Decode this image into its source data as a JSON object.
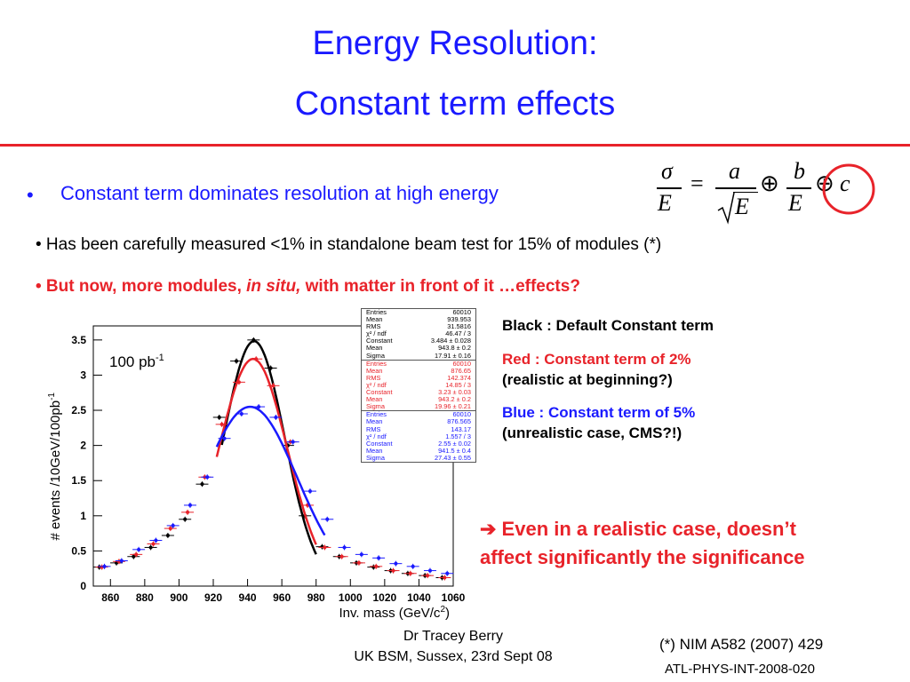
{
  "slide": {
    "title_line1": "Energy Resolution:",
    "title_line2": "Constant term effects",
    "bullet_main": "Constant term dominates resolution at high energy",
    "sub1": "• Has been carefully measured <1% in standalone beam test for 15% of modules (*)",
    "sub2_part1": "• But now, more modules, ",
    "sub2_italic": "in situ,",
    "sub2_part2": " with matter in front of it …effects?",
    "formula": {
      "lhs_num": "σ",
      "lhs_den": "E",
      "a": "a",
      "sqrtE": "E",
      "b": "b",
      "E": "E",
      "c": "c",
      "eq": "=",
      "oplus": "⊕"
    }
  },
  "legend": {
    "black": "Black : Default Constant term",
    "red1": "Red : Constant term of 2%",
    "red2": "(realistic at beginning?)",
    "blue1": "Blue : Constant term of 5%",
    "blue2": "(unrealistic case, CMS?!)"
  },
  "conclusion": {
    "line1": "➔ Even in a realistic case, doesn’t",
    "line2": "affect significantly the significance"
  },
  "footer": {
    "author": "Dr Tracey Berry",
    "event": "UK BSM, Sussex, 23rd Sept 08",
    "ref1": "(*) NIM A582 (2007) 429",
    "ref2": "ATL-PHYS-INT-2008-020"
  },
  "chart_data": {
    "type": "scatter",
    "annotation_lumi": "100 pb",
    "annotation_lumi_sup": "-1",
    "xlabel": "Inv. mass (GeV/c",
    "xlabel_sup": "2",
    "xlabel_end": ")",
    "ylabel": "# events /10GeV/100pb",
    "ylabel_sup": "-1",
    "xlim": [
      850,
      1060
    ],
    "ylim": [
      0,
      3.7
    ],
    "x_ticks": [
      "860",
      "880",
      "900",
      "920",
      "940",
      "960",
      "980",
      "1000",
      "1020",
      "1040",
      "1060"
    ],
    "y_ticks": [
      "0",
      "0.5",
      "1",
      "1.5",
      "2",
      "2.5",
      "3",
      "3.5"
    ],
    "y_tick_values": [
      0,
      0.5,
      1,
      1.5,
      2,
      2.5,
      3,
      3.5
    ],
    "x_tick_values": [
      860,
      880,
      900,
      920,
      940,
      960,
      980,
      1000,
      1020,
      1040,
      1060
    ],
    "series": [
      {
        "color": "#000000",
        "x": [
          855,
          865,
          875,
          885,
          895,
          905,
          915,
          925,
          935,
          945,
          955,
          965,
          975,
          985,
          995,
          1005,
          1015,
          1025,
          1035,
          1045,
          1055
        ],
        "y": [
          0.27,
          0.33,
          0.42,
          0.55,
          0.72,
          0.95,
          1.45,
          2.4,
          3.2,
          3.5,
          3.1,
          2.0,
          1.0,
          0.56,
          0.42,
          0.33,
          0.27,
          0.22,
          0.18,
          0.15,
          0.12
        ],
        "fit": {
          "amp": 3.484,
          "mean": 943.8,
          "sigma": 17.91,
          "range": [
            925,
            980
          ]
        }
      },
      {
        "color": "#e8232a",
        "x": [
          855,
          865,
          875,
          885,
          895,
          905,
          915,
          925,
          935,
          945,
          955,
          965,
          975,
          985,
          995,
          1005,
          1015,
          1025,
          1035,
          1045,
          1055
        ],
        "y": [
          0.27,
          0.35,
          0.45,
          0.6,
          0.82,
          1.05,
          1.55,
          2.3,
          2.9,
          3.23,
          2.85,
          2.05,
          1.15,
          0.55,
          0.42,
          0.33,
          0.28,
          0.22,
          0.18,
          0.15,
          0.12
        ],
        "fit": {
          "amp": 3.23,
          "mean": 943.2,
          "sigma": 19.96,
          "range": [
            922,
            980
          ]
        }
      },
      {
        "color": "#1a1aff",
        "x": [
          855,
          865,
          875,
          885,
          895,
          905,
          915,
          925,
          935,
          945,
          955,
          965,
          975,
          985,
          995,
          1005,
          1015,
          1025,
          1035,
          1045,
          1055
        ],
        "y": [
          0.28,
          0.36,
          0.52,
          0.65,
          0.86,
          1.15,
          1.55,
          2.1,
          2.45,
          2.55,
          2.4,
          2.05,
          1.35,
          0.95,
          0.55,
          0.45,
          0.4,
          0.32,
          0.28,
          0.22,
          0.18
        ],
        "fit": {
          "amp": 2.55,
          "mean": 941.5,
          "sigma": 27.43,
          "range": [
            922,
            985
          ]
        }
      }
    ],
    "stats_boxes": [
      {
        "color": "#000000",
        "rows": [
          [
            "Entries",
            "60010"
          ],
          [
            "Mean",
            "939.953"
          ],
          [
            "RMS",
            "31.5816"
          ],
          [
            "χ² / ndf",
            "46.47 / 3"
          ],
          [
            "Constant",
            "3.484 ± 0.028"
          ],
          [
            "Mean",
            "943.8 ± 0.2"
          ],
          [
            "Sigma",
            "17.91 ± 0.16"
          ]
        ]
      },
      {
        "color": "#e8232a",
        "rows": [
          [
            "Entries",
            "60010"
          ],
          [
            "Mean",
            "876.65"
          ],
          [
            "RMS",
            "142.374"
          ],
          [
            "χ² / ndf",
            "14.85 / 3"
          ],
          [
            "Constant",
            "3.23 ± 0.03"
          ],
          [
            "Mean",
            "943.2 ± 0.2"
          ],
          [
            "Sigma",
            "19.96 ± 0.21"
          ]
        ]
      },
      {
        "color": "#1a1aff",
        "rows": [
          [
            "Entries",
            "60010"
          ],
          [
            "Mean",
            "876.565"
          ],
          [
            "RMS",
            "143.17"
          ],
          [
            "χ² / ndf",
            "1.557 / 3"
          ],
          [
            "Constant",
            "2.55 ± 0.02"
          ],
          [
            "Mean",
            "941.5 ± 0.4"
          ],
          [
            "Sigma",
            "27.43 ± 0.55"
          ]
        ]
      }
    ]
  }
}
